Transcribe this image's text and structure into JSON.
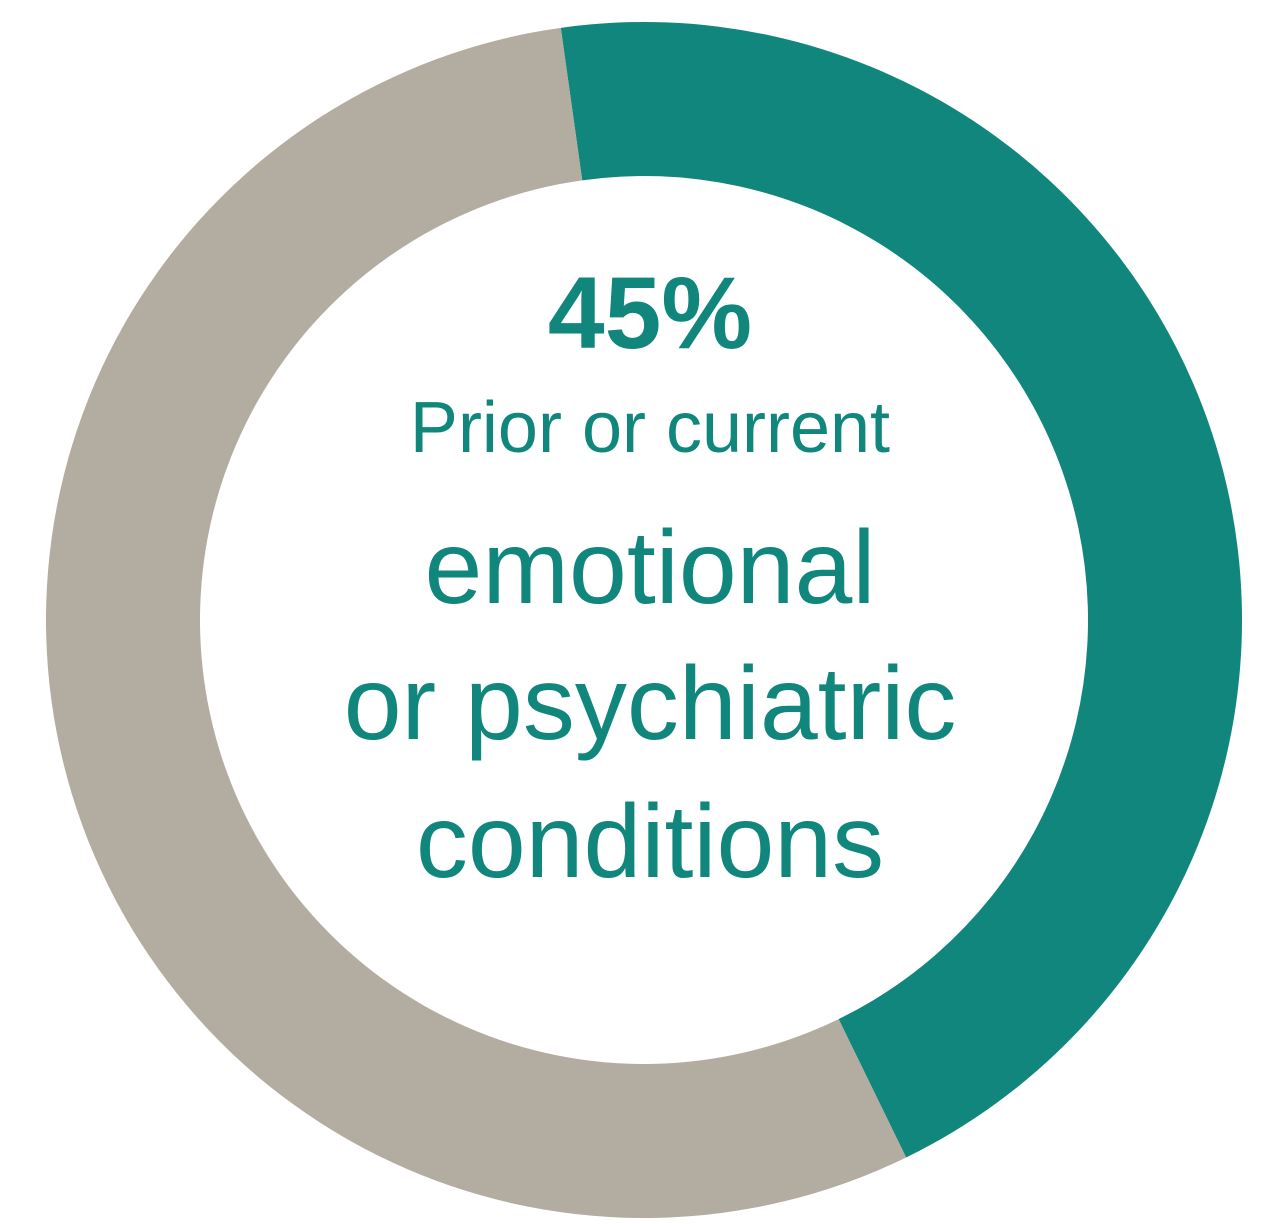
{
  "chart_data": {
    "type": "pie",
    "donut": true,
    "slices": [
      {
        "value": 45,
        "color": "#10867c"
      },
      {
        "value": 55,
        "color": "#b3aca0"
      }
    ],
    "start_angle_deg": -98,
    "center_text": {
      "value_label": "45%",
      "lines": [
        "Prior or current",
        "emotional",
        "or psychiatric",
        "conditions"
      ]
    }
  },
  "colors": {
    "accent": "#10867c",
    "remainder": "#b3aca0",
    "background": "#ffffff"
  }
}
